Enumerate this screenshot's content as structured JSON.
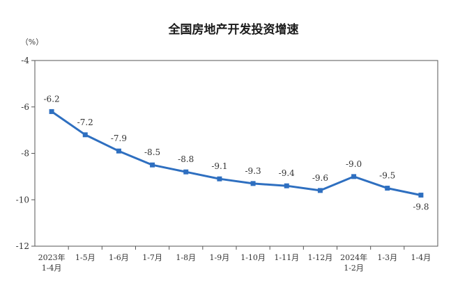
{
  "chart_data": {
    "type": "line",
    "title": "全国房地产开发投资增速",
    "unit_label": "（%）",
    "ylim": [
      -12,
      -4
    ],
    "yticks": [
      "-4",
      "-6",
      "-8",
      "-10",
      "-12"
    ],
    "ytick_values": [
      -4,
      -6,
      -8,
      -10,
      -12
    ],
    "grid": false,
    "categories": [
      [
        "2023年",
        "1-4月"
      ],
      [
        "1-5月"
      ],
      [
        "1-6月"
      ],
      [
        "1-7月"
      ],
      [
        "1-8月"
      ],
      [
        "1-9月"
      ],
      [
        "1-10月"
      ],
      [
        "1-11月"
      ],
      [
        "1-12月"
      ],
      [
        "2024年",
        "1-2月"
      ],
      [
        "1-3月"
      ],
      [
        "1-4月"
      ]
    ],
    "values": [
      -6.2,
      -7.2,
      -7.9,
      -8.5,
      -8.8,
      -9.1,
      -9.3,
      -9.4,
      -9.6,
      -9.0,
      -9.5,
      -9.8
    ],
    "data_labels": [
      "-6.2",
      "-7.2",
      "-7.9",
      "-8.5",
      "-8.8",
      "-9.1",
      "-9.3",
      "-9.4",
      "-9.6",
      "-9.0",
      "-9.5",
      "-9.8"
    ],
    "colors": {
      "line": "#2e6fc0",
      "axis": "#555555"
    }
  }
}
